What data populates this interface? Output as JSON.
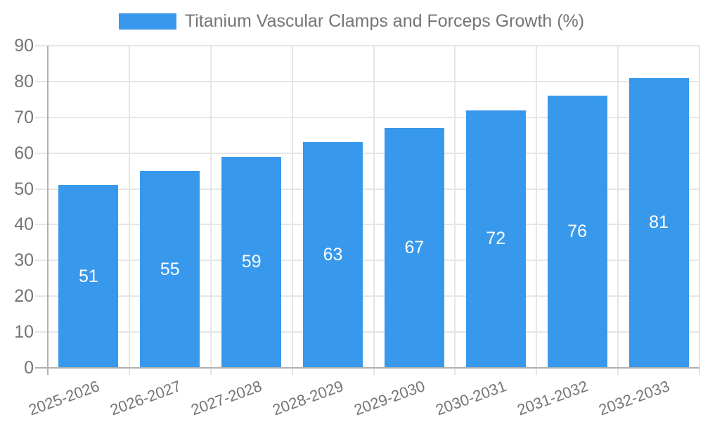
{
  "colors": {
    "bar": "#3899ec",
    "grid": "#e6e6e6",
    "axis": "#b0b0b0",
    "text": "#757575",
    "value_label": "#ffffff",
    "background": "#ffffff"
  },
  "legend": {
    "label": "Titanium Vascular Clamps and Forceps Growth (%)",
    "position": "top"
  },
  "chart_data": {
    "type": "bar",
    "title": "Titanium Vascular Clamps and Forceps Growth (%)",
    "categories": [
      "2025-2026",
      "2026-2027",
      "2027-2028",
      "2028-2029",
      "2029-2030",
      "2030-2031",
      "2031-2032",
      "2032-2033"
    ],
    "values": [
      51,
      55,
      59,
      63,
      67,
      72,
      76,
      81
    ],
    "xlabel": "",
    "ylabel": "",
    "ylim": [
      0,
      90
    ],
    "yticks": [
      0,
      10,
      20,
      30,
      40,
      50,
      60,
      70,
      80,
      90
    ],
    "grid": true,
    "legend_position": "top",
    "value_labels_inside_bars": true
  }
}
